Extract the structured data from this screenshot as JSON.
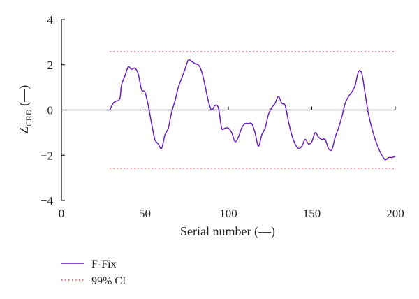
{
  "chart_data": {
    "type": "line",
    "title": "",
    "xlabel": "Serial number (—)",
    "ylabel": {
      "main": "Z",
      "sub": "CRD",
      "suffix": " (—)"
    },
    "xlim": [
      0,
      200
    ],
    "ylim": [
      -4,
      4
    ],
    "xticks": [
      0,
      50,
      100,
      150,
      200
    ],
    "yticks": [
      -4,
      -2,
      0,
      2,
      4
    ],
    "grid": false,
    "legend": "bottom-left",
    "series": [
      {
        "name": "F-Fix",
        "color": "#6a1fc0",
        "style": "solid",
        "x": [
          29,
          31,
          33,
          35,
          36,
          38,
          40,
          42,
          44,
          46,
          48,
          50,
          52,
          54,
          56,
          58,
          60,
          62,
          64,
          66,
          68,
          70,
          72,
          74,
          76,
          78,
          80,
          82,
          84,
          86,
          88,
          90,
          92,
          94,
          96,
          98,
          100,
          102,
          104,
          106,
          108,
          110,
          112,
          114,
          116,
          118,
          120,
          122,
          124,
          126,
          128,
          130,
          132,
          134,
          136,
          138,
          140,
          142,
          144,
          146,
          148,
          150,
          152,
          154,
          156,
          158,
          160,
          162,
          164,
          166,
          168,
          170,
          172,
          174,
          176,
          178,
          180,
          182,
          184,
          186,
          188,
          190,
          192,
          194,
          196,
          198,
          200
        ],
        "y": [
          0.0,
          0.3,
          0.4,
          0.5,
          1.1,
          1.5,
          1.9,
          1.8,
          1.85,
          1.6,
          0.9,
          0.8,
          0.2,
          -0.6,
          -1.3,
          -1.5,
          -1.7,
          -1.1,
          -0.8,
          -0.1,
          0.4,
          1.0,
          1.4,
          1.8,
          2.2,
          2.15,
          2.05,
          2.0,
          1.7,
          1.1,
          0.4,
          0.0,
          0.2,
          0.1,
          -0.8,
          -0.8,
          -0.8,
          -1.0,
          -1.4,
          -1.2,
          -0.8,
          -0.6,
          -0.6,
          -0.6,
          -1.0,
          -1.6,
          -1.1,
          -0.8,
          -0.2,
          0.1,
          0.3,
          0.6,
          0.3,
          0.2,
          -0.5,
          -1.1,
          -1.5,
          -1.7,
          -1.6,
          -1.3,
          -1.5,
          -1.4,
          -1.0,
          -1.2,
          -1.3,
          -1.3,
          -1.7,
          -1.75,
          -1.2,
          -0.8,
          -0.3,
          0.3,
          0.6,
          0.8,
          1.1,
          1.7,
          1.6,
          0.7,
          -0.2,
          -0.8,
          -1.3,
          -1.7,
          -2.0,
          -2.2,
          -2.1,
          -2.1,
          -2.05
        ]
      },
      {
        "name": "99% CI",
        "color": "#e0484a",
        "style": "dotted",
        "bounds": [
          2.58,
          -2.58
        ]
      }
    ]
  }
}
